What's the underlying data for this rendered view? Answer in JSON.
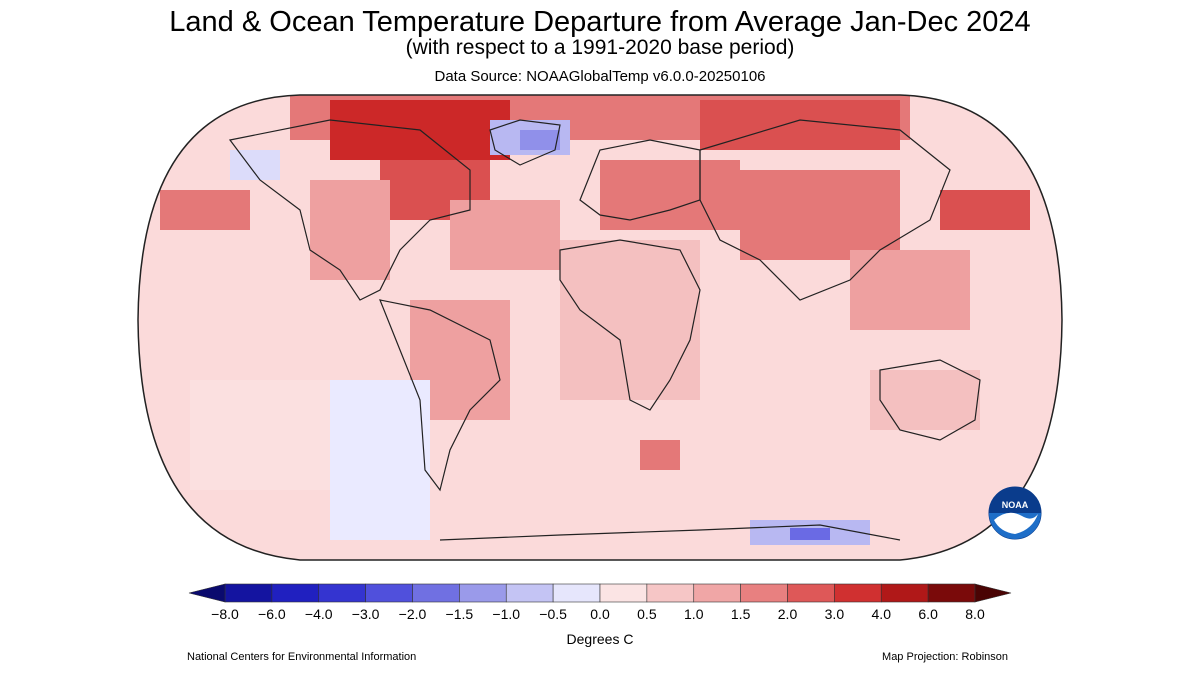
{
  "title": "Land & Ocean Temperature Departure from Average Jan-Dec 2024",
  "subtitle": "(with respect to a 1991-2020 base period)",
  "source": "Data Source: NOAAGlobalTemp v6.0.0-20250106",
  "legend": {
    "units": "Degrees C",
    "ticks": [
      "−8.0",
      "−6.0",
      "−4.0",
      "−3.0",
      "−2.0",
      "−1.5",
      "−1.0",
      "−0.5",
      "0.0",
      "0.5",
      "1.0",
      "1.5",
      "2.0",
      "3.0",
      "4.0",
      "6.0",
      "8.0"
    ],
    "colors": [
      "#0a0a8c",
      "#1616b4",
      "#2a2ad2",
      "#4848dc",
      "#6a6ae4",
      "#9090ea",
      "#b8b8f2",
      "#dcdcfa",
      "#ffffff",
      "#fbe0e0",
      "#f4c0c0",
      "#eea0a0",
      "#e47878",
      "#da5050",
      "#cc2828",
      "#a01010",
      "#6a0808"
    ]
  },
  "projection": "Map Projection: Robinson",
  "organization": "National Centers for Environmental Information",
  "logo_text": "NOAA",
  "map": {
    "base_color": "#fbdada",
    "ocean_outline": "#333333"
  }
}
